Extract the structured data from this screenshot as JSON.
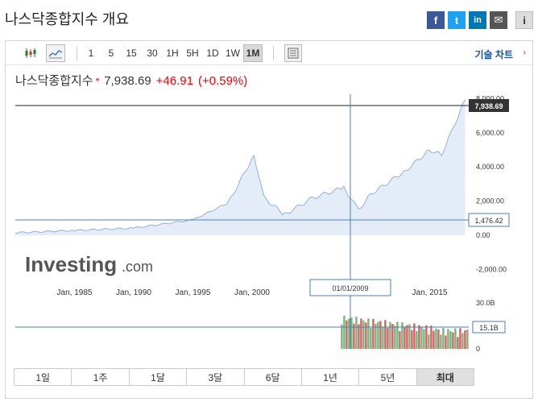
{
  "header": {
    "title": "나스닥종합지수 개요"
  },
  "share": {
    "facebook_glyph": "f",
    "twitter_glyph": "t",
    "linkedin_glyph": "in",
    "email_glyph": "✉",
    "info_glyph": "i"
  },
  "toolbar": {
    "intervals": [
      "1",
      "5",
      "15",
      "30",
      "1H",
      "5H",
      "1D",
      "1W",
      "1M"
    ],
    "selected_interval": "1M",
    "technical_label": "기술 차트",
    "technical_caret": "›"
  },
  "quote": {
    "name": "나스닥종합지수",
    "star": "*",
    "price": "7,938.69",
    "change": "+46.91",
    "change_pct": "(+0.59%)"
  },
  "chart": {
    "logo_text": "Investing",
    "logo_suffix": ".com",
    "last_price_label": "7,938.69",
    "crosshair_price_label": "1,476.42",
    "crosshair_date_label": "01/01/2009",
    "volume_label": "15.1B",
    "y_ticks": [
      "8,000.00",
      "6,000.00",
      "4,000.00",
      "2,000.00",
      "0.00",
      "-2,000.00"
    ],
    "x_ticks": [
      "Jan, 1985",
      "Jan, 1990",
      "Jan, 1995",
      "Jan, 2000",
      "Jan, 20",
      "Jan, 2015"
    ],
    "vol_ticks": [
      "30.0B",
      "0"
    ],
    "line_color": "#8fb3d9",
    "fill_color": "#e3ecf7",
    "volume_up_color": "#7bb37b",
    "volume_down_color": "#d06464"
  },
  "chart_data": {
    "type": "area",
    "x": [
      "1980",
      "1985",
      "1990",
      "1995",
      "1998",
      "2000-03",
      "2001",
      "2002-10",
      "2005",
      "2007-10",
      "2009-01",
      "2010",
      "2013",
      "2015",
      "2016",
      "2018"
    ],
    "values": [
      150,
      280,
      420,
      900,
      1900,
      4700,
      2200,
      1200,
      2150,
      2800,
      1476,
      2400,
      3800,
      5000,
      4700,
      7938
    ],
    "ylim": [
      -2000,
      8500
    ],
    "y_ticks": [
      "-2,000.00",
      "0.00",
      "2,000.00",
      "4,000.00",
      "6,000.00",
      "8,000.00"
    ],
    "x_ticks": [
      "Jan, 1985",
      "Jan, 1990",
      "Jan, 1995",
      "Jan, 2000",
      "Jan, 20",
      "Jan, 2015"
    ],
    "grid": false
  },
  "ranges": {
    "items": [
      "1일",
      "1주",
      "1달",
      "3달",
      "6달",
      "1년",
      "5년",
      "최대"
    ],
    "selected": "최대"
  }
}
